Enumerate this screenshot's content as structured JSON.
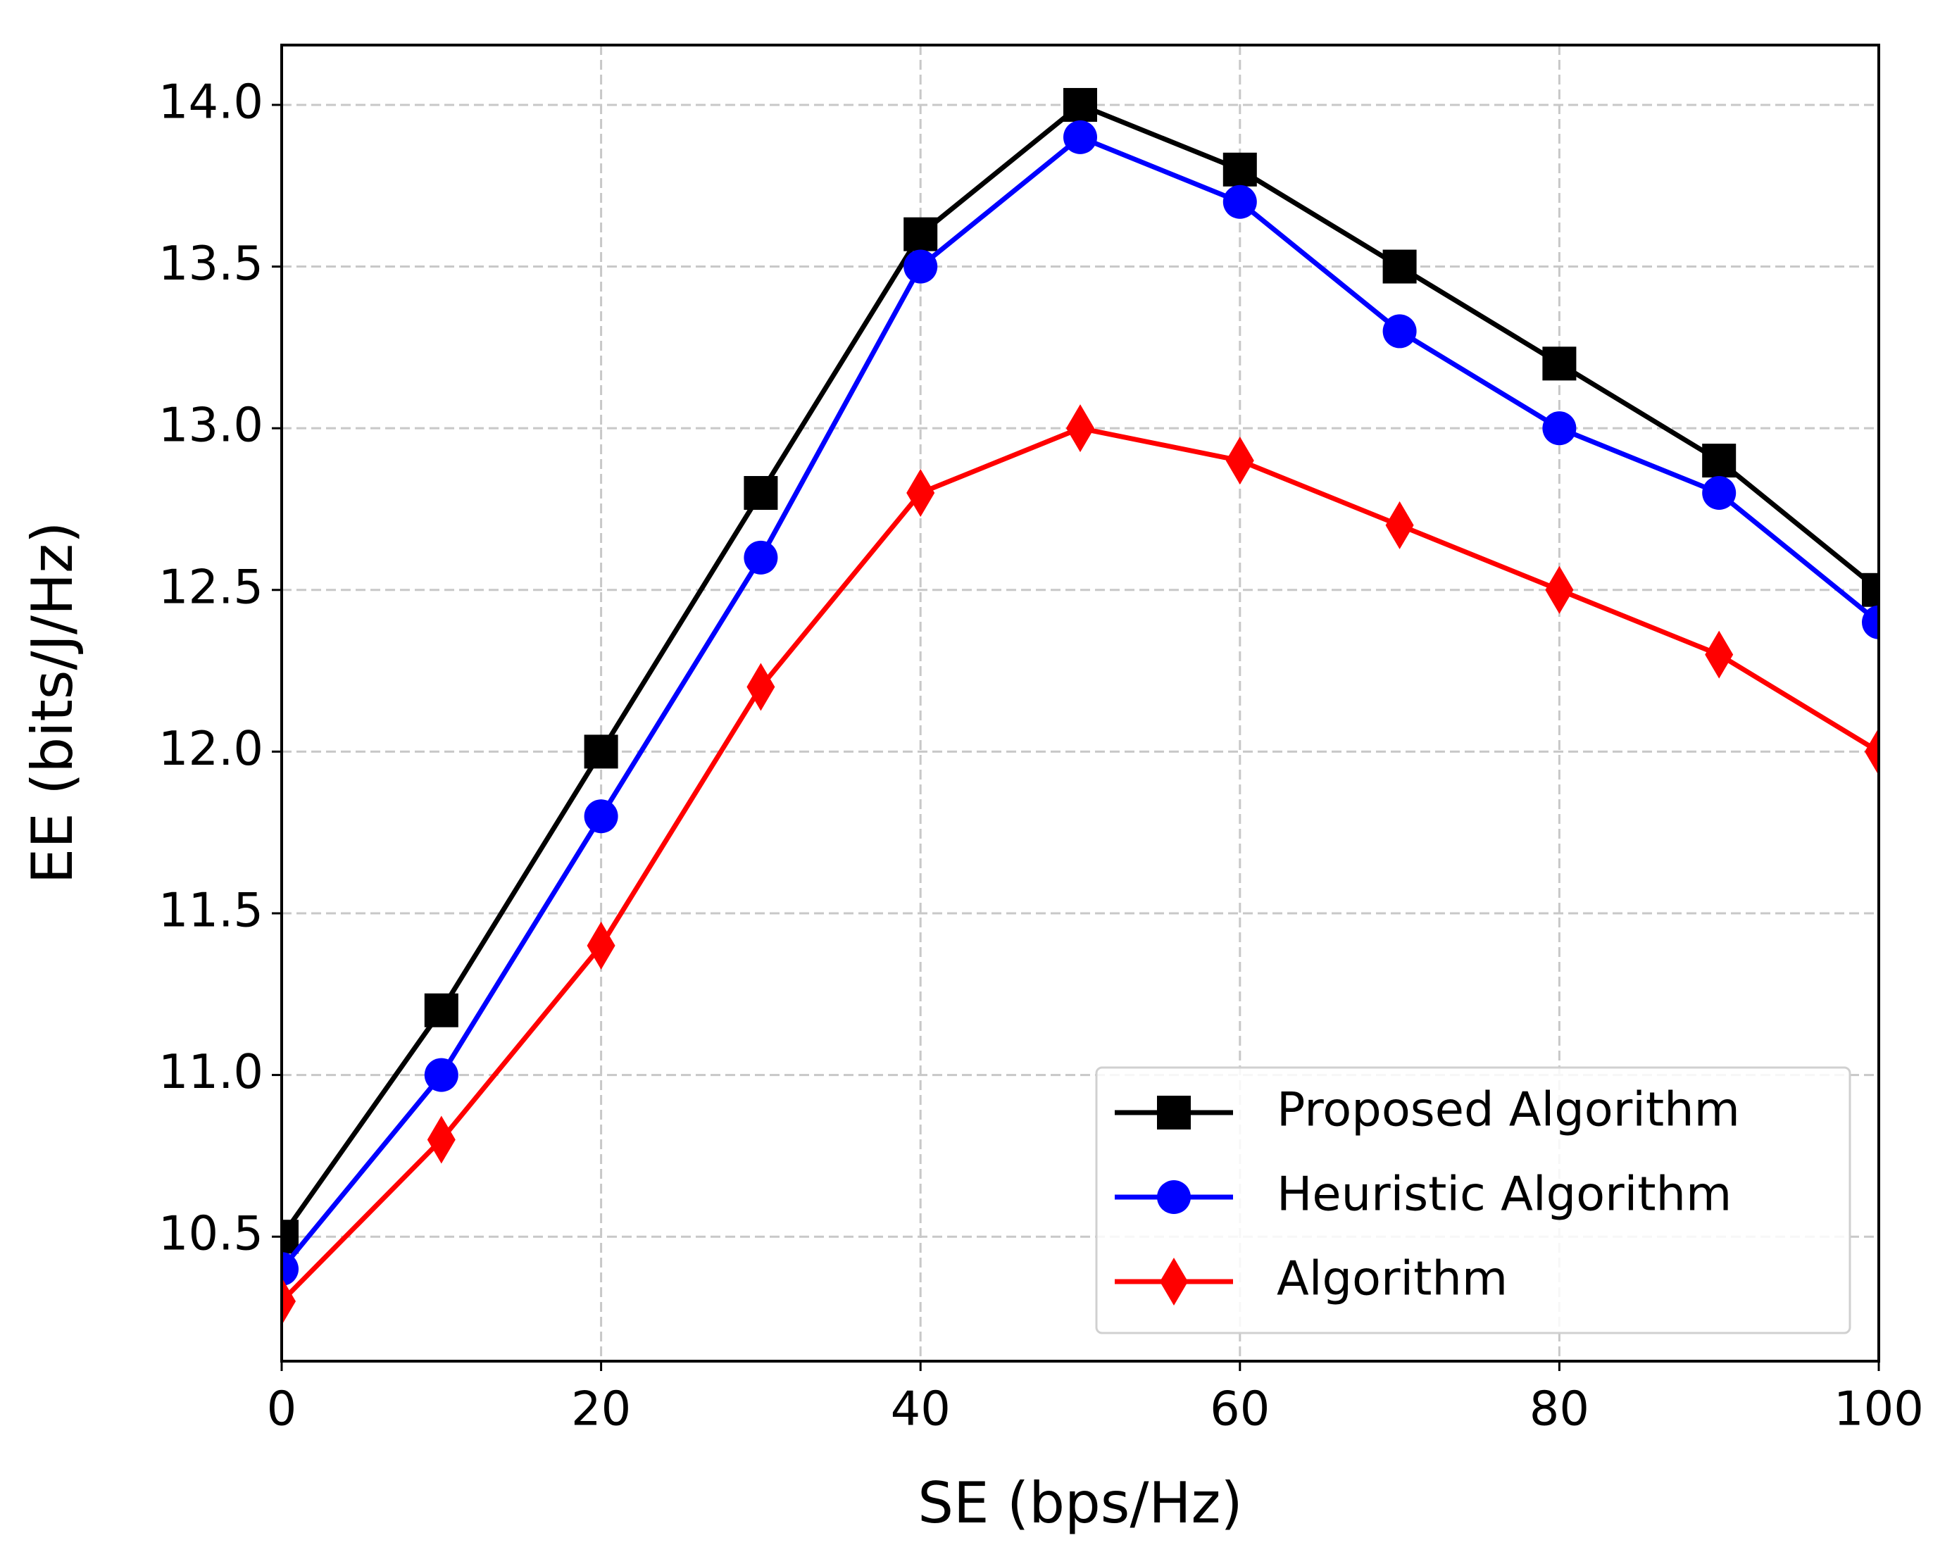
{
  "chart_data": {
    "type": "line",
    "xlabel": "SE (bps/Hz)",
    "ylabel": "EE (bits/J/Hz)",
    "x": [
      0,
      10,
      20,
      30,
      40,
      50,
      60,
      70,
      80,
      90,
      100
    ],
    "series": [
      {
        "name": "Proposed Algorithm",
        "color": "#000000",
        "marker": "square",
        "values": [
          10.5,
          11.2,
          12.0,
          12.8,
          13.6,
          14.0,
          13.8,
          13.5,
          13.2,
          12.9,
          12.5
        ]
      },
      {
        "name": "Heuristic Algorithm",
        "color": "#0000ff",
        "marker": "circle",
        "values": [
          10.4,
          11.0,
          11.8,
          12.6,
          13.5,
          13.9,
          13.7,
          13.3,
          13.0,
          12.8,
          12.4
        ]
      },
      {
        "name": "Algorithm",
        "color": "#ff0000",
        "marker": "diamond",
        "values": [
          10.3,
          10.8,
          11.4,
          12.2,
          12.8,
          13.0,
          12.9,
          12.7,
          12.5,
          12.3,
          12.0
        ]
      }
    ],
    "xlim": [
      0,
      100
    ],
    "xticks": [
      0,
      20,
      40,
      60,
      80,
      100
    ],
    "ylim": [
      10.115,
      14.185
    ],
    "yticks": [
      10.5,
      {
        "value": 11,
        "label": "11.0"
      },
      11.5,
      {
        "value": 12,
        "label": "12.0"
      },
      12.5,
      {
        "value": 13,
        "label": "13.0"
      },
      13.5,
      {
        "value": 14,
        "label": "14.0"
      }
    ],
    "grid": true,
    "legend": "lower right"
  }
}
